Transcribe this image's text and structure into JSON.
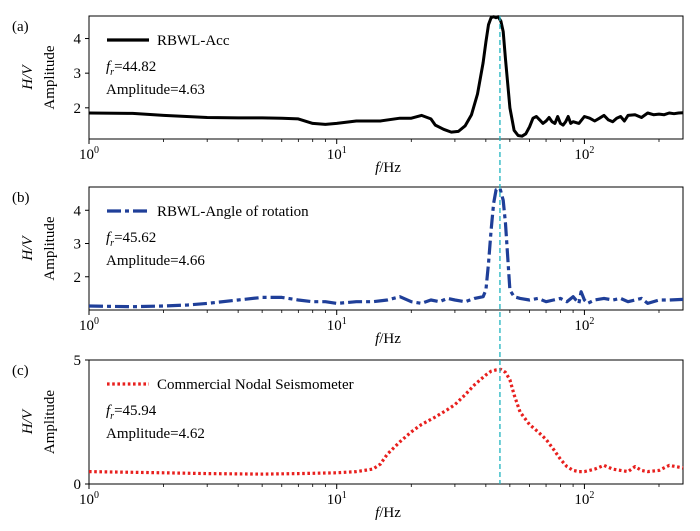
{
  "figure": {
    "fr_line_color": "#1fb3bf"
  },
  "chart_data": [
    {
      "type": "line",
      "panel_label": "(a)",
      "xlabel_italic": "f",
      "xlabel_unit": "/Hz",
      "ylabel_italic": "H/V",
      "ylabel": "Amplitude",
      "xscale": "log",
      "xlim": [
        1,
        250
      ],
      "ylim": [
        1.1,
        4.65
      ],
      "xticks": [
        {
          "value": 1,
          "base": "10",
          "exp": "0"
        },
        {
          "value": 10,
          "base": "10",
          "exp": "1"
        },
        {
          "value": 100,
          "base": "10",
          "exp": "2"
        }
      ],
      "yticks": [
        2,
        3,
        4
      ],
      "legend_position": "top-left",
      "annotation": {
        "fr_symbol": "f",
        "fr_sub": "r",
        "fr_value": "=44.82",
        "amplitude": "Amplitude=4.63"
      },
      "series": [
        {
          "name": "RBWL-Acc",
          "color": "#000000",
          "style": "solid",
          "x": [
            1,
            1.5,
            2,
            3,
            4,
            5,
            6,
            7,
            8,
            9,
            10,
            12,
            15,
            18,
            20,
            22,
            24,
            25,
            27,
            29,
            31,
            33,
            35,
            37,
            39,
            40,
            41,
            42,
            43,
            44,
            44.82,
            46,
            47,
            48,
            50,
            52,
            54,
            56,
            58,
            60,
            62,
            64,
            66,
            68,
            70,
            72,
            74,
            76,
            78,
            80,
            82,
            84,
            86,
            88,
            90,
            95,
            100,
            105,
            110,
            115,
            120,
            125,
            130,
            135,
            140,
            145,
            150,
            160,
            170,
            180,
            190,
            200,
            210,
            220,
            230,
            240,
            250
          ],
          "y": [
            1.85,
            1.84,
            1.78,
            1.72,
            1.71,
            1.71,
            1.7,
            1.68,
            1.55,
            1.52,
            1.55,
            1.62,
            1.62,
            1.7,
            1.7,
            1.78,
            1.68,
            1.5,
            1.38,
            1.3,
            1.32,
            1.48,
            1.8,
            2.4,
            3.3,
            3.9,
            4.4,
            4.6,
            4.63,
            4.6,
            4.63,
            4.5,
            4.2,
            3.4,
            2.0,
            1.35,
            1.2,
            1.18,
            1.25,
            1.45,
            1.7,
            1.75,
            1.65,
            1.55,
            1.62,
            1.72,
            1.6,
            1.55,
            1.75,
            1.55,
            1.5,
            1.6,
            1.75,
            1.55,
            1.6,
            1.55,
            1.75,
            1.7,
            1.62,
            1.7,
            1.78,
            1.65,
            1.6,
            1.7,
            1.75,
            1.62,
            1.78,
            1.8,
            1.72,
            1.85,
            1.8,
            1.82,
            1.8,
            1.85,
            1.83,
            1.85,
            1.86
          ]
        }
      ]
    },
    {
      "type": "line",
      "panel_label": "(b)",
      "xlabel_italic": "f",
      "xlabel_unit": "/Hz",
      "ylabel_italic": "H/V",
      "ylabel": "Amplitude",
      "xscale": "log",
      "xlim": [
        1,
        250
      ],
      "ylim": [
        1.0,
        4.7
      ],
      "xticks": [
        {
          "value": 1,
          "base": "10",
          "exp": "0"
        },
        {
          "value": 10,
          "base": "10",
          "exp": "1"
        },
        {
          "value": 100,
          "base": "10",
          "exp": "2"
        }
      ],
      "yticks": [
        2,
        3,
        4
      ],
      "legend_position": "top-left",
      "annotation": {
        "fr_symbol": "f",
        "fr_sub": "r",
        "fr_value": "=45.62",
        "amplitude": "Amplitude=4.66"
      },
      "series": [
        {
          "name": "RBWL-Angle of rotation",
          "color": "#1f3f99",
          "style": "dashdot",
          "x": [
            1,
            1.5,
            2,
            2.5,
            3,
            4,
            5,
            6,
            7,
            8,
            9,
            10,
            12,
            14,
            16,
            18,
            20,
            22,
            24,
            26,
            28,
            30,
            33,
            36,
            39,
            40,
            41,
            42,
            43,
            44,
            45.62,
            47,
            48,
            49,
            50,
            52,
            55,
            60,
            65,
            70,
            75,
            80,
            85,
            90,
            95,
            97,
            100,
            103,
            110,
            120,
            130,
            140,
            150,
            160,
            170,
            180,
            200,
            220,
            250
          ],
          "y": [
            1.12,
            1.1,
            1.12,
            1.15,
            1.2,
            1.3,
            1.38,
            1.38,
            1.3,
            1.25,
            1.25,
            1.2,
            1.25,
            1.25,
            1.3,
            1.4,
            1.25,
            1.2,
            1.3,
            1.25,
            1.35,
            1.3,
            1.25,
            1.35,
            1.4,
            1.6,
            2.4,
            3.4,
            4.2,
            4.62,
            4.66,
            4.3,
            3.6,
            2.6,
            1.6,
            1.4,
            1.35,
            1.3,
            1.35,
            1.25,
            1.3,
            1.35,
            1.25,
            1.4,
            1.2,
            1.55,
            1.3,
            1.2,
            1.3,
            1.35,
            1.3,
            1.35,
            1.25,
            1.3,
            1.35,
            1.2,
            1.3,
            1.3,
            1.32
          ]
        }
      ]
    },
    {
      "type": "line",
      "panel_label": "(c)",
      "xlabel_italic": "f",
      "xlabel_unit": "/Hz",
      "ylabel_italic": "H/V",
      "ylabel": "Amplitude",
      "xscale": "log",
      "xlim": [
        1,
        250
      ],
      "ylim": [
        0,
        5
      ],
      "xticks": [
        {
          "value": 1,
          "base": "10",
          "exp": "0"
        },
        {
          "value": 10,
          "base": "10",
          "exp": "1"
        },
        {
          "value": 100,
          "base": "10",
          "exp": "2"
        }
      ],
      "yticks": [
        0,
        5
      ],
      "legend_position": "top-left",
      "annotation": {
        "fr_symbol": "f",
        "fr_sub": "r",
        "fr_value": "=45.94",
        "amplitude": "Amplitude=4.62"
      },
      "series": [
        {
          "name": "Commercial Nodal Seismometer",
          "color": "#e8201e",
          "style": "dotted",
          "x": [
            1,
            2,
            3,
            5,
            7,
            10,
            12,
            14,
            15,
            16,
            18,
            20,
            22,
            25,
            28,
            30,
            33,
            36,
            40,
            42,
            44,
            45.94,
            48,
            50,
            52,
            55,
            60,
            65,
            70,
            75,
            80,
            85,
            90,
            95,
            100,
            110,
            120,
            130,
            140,
            150,
            160,
            170,
            180,
            200,
            220,
            250
          ],
          "y": [
            0.5,
            0.45,
            0.42,
            0.4,
            0.42,
            0.45,
            0.5,
            0.6,
            0.8,
            1.2,
            1.7,
            2.1,
            2.4,
            2.7,
            3.0,
            3.2,
            3.6,
            4.0,
            4.4,
            4.55,
            4.6,
            4.62,
            4.5,
            4.2,
            3.6,
            2.9,
            2.4,
            2.1,
            1.8,
            1.4,
            1.0,
            0.7,
            0.55,
            0.5,
            0.5,
            0.6,
            0.75,
            0.6,
            0.55,
            0.5,
            0.7,
            0.55,
            0.5,
            0.55,
            0.75,
            0.65
          ]
        }
      ]
    }
  ]
}
